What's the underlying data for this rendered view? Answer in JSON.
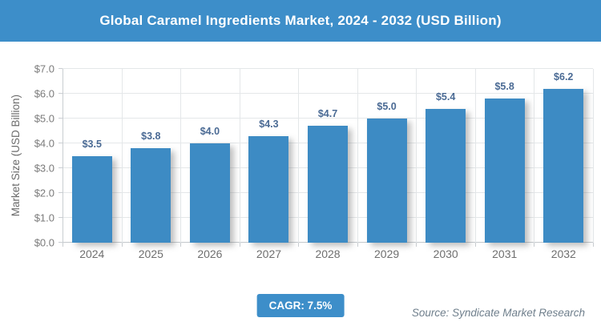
{
  "title": "Global Caramel Ingredients Market, 2024 - 2032 (USD Billion)",
  "cagr_label": "CAGR: 7.5%",
  "source": "Source: Syndicate Market Research",
  "colors": {
    "banner": "#3d8ec9",
    "bar": "#3d8bc4",
    "value_label": "#4a6a94",
    "axis_text": "#6f6f6f",
    "gridline": "#e4e7e9",
    "source_text": "#6f7f8c",
    "cagr_bg": "#3d8ec9"
  },
  "chart_data": {
    "type": "bar",
    "title": "Global Caramel Ingredients Market, 2024 - 2032 (USD Billion)",
    "categories": [
      "2024",
      "2025",
      "2026",
      "2027",
      "2028",
      "2029",
      "2030",
      "2031",
      "2032"
    ],
    "values": [
      3.5,
      3.8,
      4.0,
      4.3,
      4.7,
      5.0,
      5.4,
      5.8,
      6.2
    ],
    "value_labels": [
      "$3.5",
      "$3.8",
      "$4.0",
      "$4.3",
      "$4.7",
      "$5.0",
      "$5.4",
      "$5.8",
      "$6.2"
    ],
    "xlabel": "",
    "ylabel": "Market Size (USD Billion)",
    "ylim": [
      0,
      7
    ],
    "ytick_step": 1.0,
    "ytick_labels": [
      "$0.0",
      "$1.0",
      "$2.0",
      "$3.0",
      "$4.0",
      "$5.0",
      "$6.0",
      "$7.0"
    ],
    "grid": "both",
    "legend_position": "none",
    "annotations": [
      "CAGR: 7.5%"
    ],
    "source": "Source: Syndicate Market Research"
  }
}
